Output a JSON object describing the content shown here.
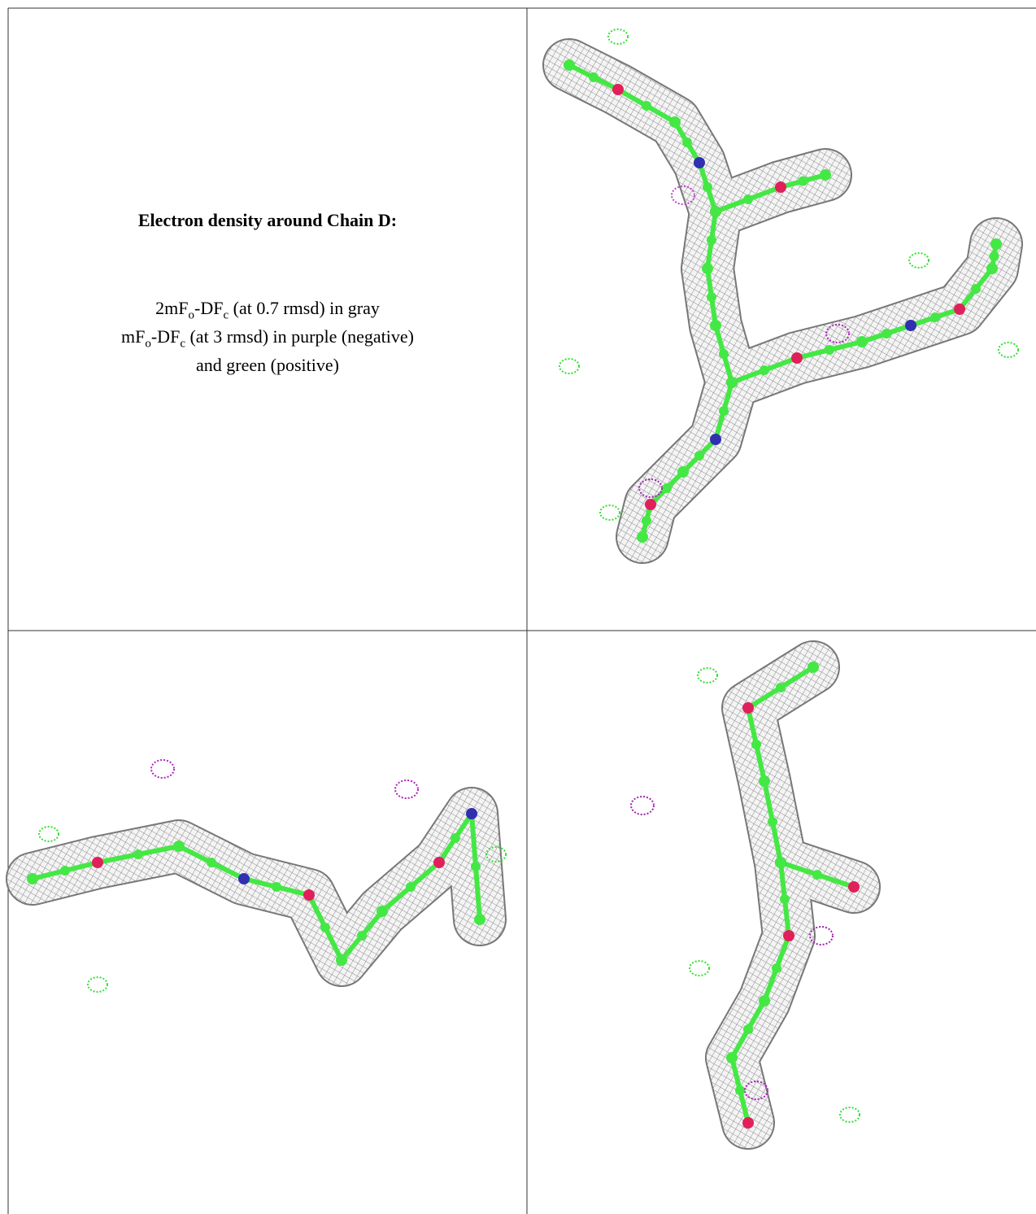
{
  "caption": {
    "title": "Electron density around Chain D:",
    "line1": [
      "2mF",
      "o",
      "-DF",
      "c",
      " (at 0.7 rmsd) in gray"
    ],
    "line2": [
      "mF",
      "o",
      "-DF",
      "c",
      " (at 3 rmsd) in purple (negative)"
    ],
    "line3": "and green (positive)"
  }
}
